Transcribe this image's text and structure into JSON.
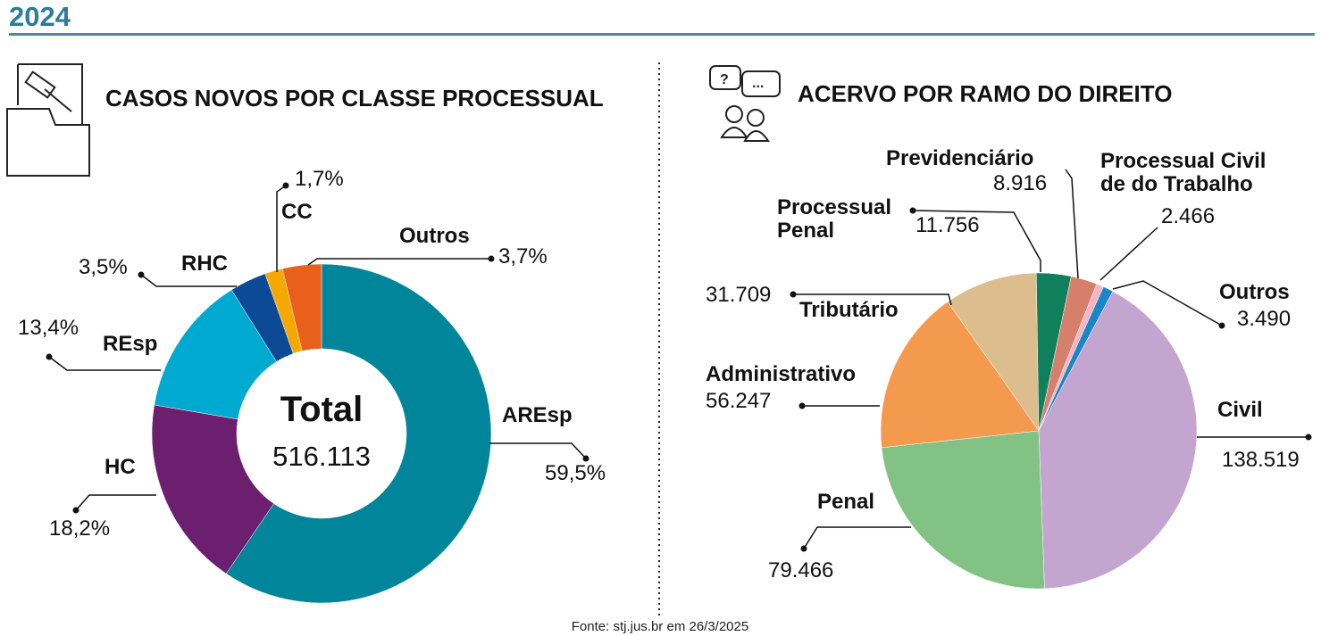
{
  "header": {
    "title": "2024"
  },
  "chart_data": [
    {
      "type": "donut",
      "title": "CASOS NOVOS POR CLASSE PROCESSUAL",
      "center_title": "Total",
      "total": {
        "value": 516113,
        "label": "516.113"
      },
      "categories": [
        "AREsp",
        "HC",
        "REsp",
        "RHC",
        "CC",
        "Outros"
      ],
      "values": [
        59.5,
        18.2,
        13.4,
        3.5,
        1.7,
        3.7
      ],
      "value_labels": [
        "59,5%",
        "18,2%",
        "13,4%",
        "3,5%",
        "1,7%",
        "3,7%"
      ],
      "colors": [
        "#00859b",
        "#6b1f6e",
        "#00a9d0",
        "#0d4a96",
        "#f5a800",
        "#e8601c"
      ]
    },
    {
      "type": "pie",
      "title": "ACERVO POR RAMO DO DIREITO",
      "categories": [
        "Tributário",
        "Processual Penal",
        "Previdenciário",
        "Processual Civil de do Trabalho",
        "Outros",
        "Civil",
        "Penal",
        "Administrativo"
      ],
      "values": [
        31709,
        11756,
        8916,
        2466,
        3490,
        138519,
        79466,
        56247
      ],
      "value_labels": [
        "31.709",
        "11.756",
        "8.916",
        "2.466",
        "3.490",
        "138.519",
        "79.466",
        "56.247"
      ],
      "colors": [
        "#dcbd8e",
        "#0f7f5c",
        "#d6806b",
        "#f4b6c2",
        "#1a86c8",
        "#c3a5d0",
        "#82c385",
        "#f39a4e"
      ]
    }
  ],
  "source": "Fonte: stj.jus.br em 26/3/2025"
}
